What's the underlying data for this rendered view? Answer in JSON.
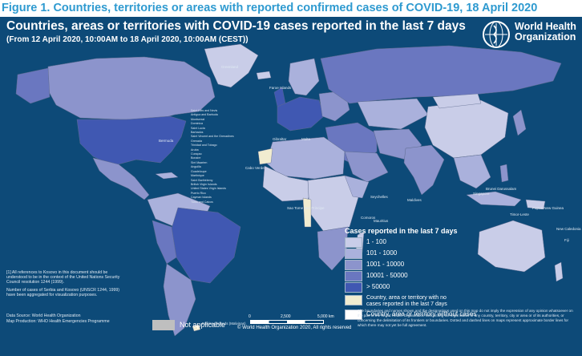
{
  "figure_title": "Figure 1. Countries, territories or areas with reported confirmed cases of COVID-19, 18 April 2020",
  "map_title": "Countries, areas or territories with COVID-19  cases reported in the last 7 days",
  "map_subtitle": "(From 12 April 2020, 10:00AM  to 18 April 2020, 10:00AM (CEST))",
  "logo": {
    "line1": "World Health",
    "line2": "Organization"
  },
  "legend": {
    "title": "Cases reported in the last 7 days",
    "items": [
      {
        "label": "1 - 100",
        "color": "#c9cde8"
      },
      {
        "label": "101 - 1000",
        "color": "#aab1dc"
      },
      {
        "label": "1001 - 10000",
        "color": "#8c94cc"
      },
      {
        "label": "10001 - 50000",
        "color": "#6a77c0"
      },
      {
        "label": "> 50000",
        "color": "#4058b2"
      },
      {
        "label": "Country, area or territory with no cases reported in the last 7 days",
        "color": "#f1ecd0"
      },
      {
        "label": "Country, area or territory without cases",
        "color": "#ffffff"
      }
    ]
  },
  "kosovo_note_1": "[1] All references to Kosovo in this document should be understood to be in the context of the United Nations Security Council resolution 1244 (1999).",
  "kosovo_note_2": "Number of cases of Serbia and Kosovo (UNSCR 1244, 1999) have been aggregated for visualization purposes.",
  "data_source": "Data Source: World Health Organization",
  "map_production": "Map Production: WHO Health Emergencies Programme",
  "not_applicable": "Not applicable",
  "scale": {
    "labels": [
      "0",
      "2,500",
      "5,000"
    ],
    "unit": "km"
  },
  "copyright": "© World Health Organization  2020,  All rights reserved",
  "disclaimer": "The boundaries and names shown and the designations used on this map do not imply the expression of any opinion whatsoever on the part of the World Health Organization concerning the legal status of any country, territory, city or area or of its authorities, or concerning the delimitation of its frontiers or boundaries. Dotted and dashed lines on maps represent approximate border lines for which there may not yet be full agreement.",
  "islands": [
    "Saint Kitts and Nevis",
    "Antigua and Barbuda",
    "Montserrat",
    "Dominica",
    "Saint Lucia",
    "Barbados",
    "Saint Vincent and the Grenadines",
    "Grenada",
    "Trinidad and Tobago",
    "Aruba",
    "Curaçao",
    "Bonaire",
    "Sint Maarten",
    "Anguilla",
    "Guadeloupe",
    "Martinique",
    "Saint Barthélemy",
    "British Virgin Islands",
    "United States Virgin Islands",
    "Puerto Rico",
    "Cayman Islands",
    "Turks and Caicos"
  ],
  "country_labels": [
    "Bermuda",
    "Cabo Verde",
    "Sao Tome and Principe",
    "Seychelles",
    "Mauritius",
    "Comoros",
    "Maldives",
    "New Caledonia",
    "Fiji",
    "Falkland Islands (Malvinas)",
    "Greenland",
    "Faroe Islands",
    "Gibraltar",
    "Malta",
    "Singapore",
    "Brunei Darussalam",
    "Timor-Leste",
    "Papua New Guinea"
  ]
}
